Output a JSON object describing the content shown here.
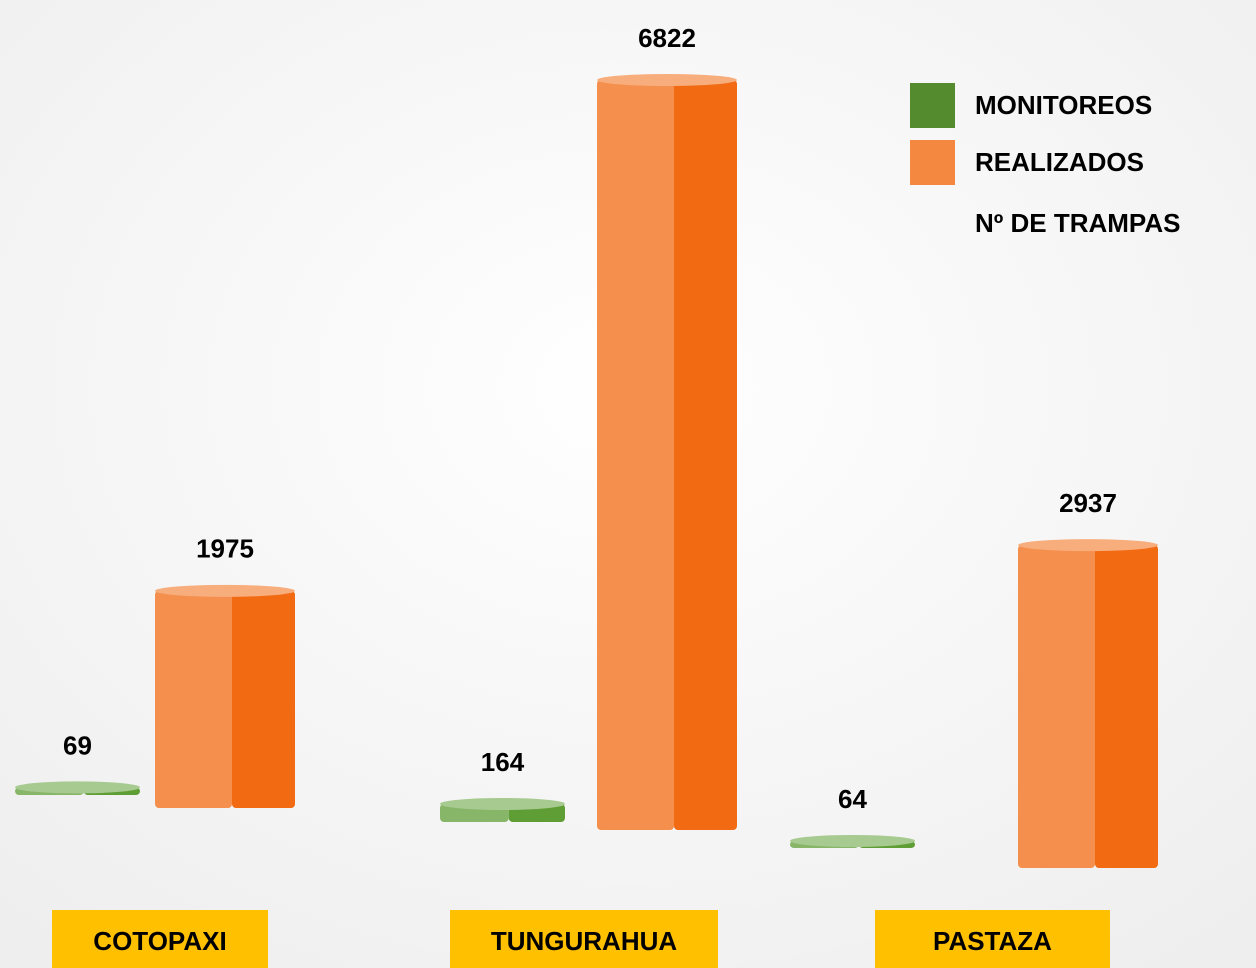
{
  "chart_data": {
    "type": "bar3d",
    "categories": [
      "COTOPAXI",
      "TUNGURAHUA",
      "PASTAZA"
    ],
    "series": [
      {
        "name": "MONITOREOS",
        "color": "#5f9e35",
        "values": [
          69,
          164,
          64
        ]
      },
      {
        "name": "REALIZADOS",
        "color": "#f26a12",
        "values": [
          1975,
          6822,
          2937
        ]
      }
    ],
    "legend_note": "Nº DE TRAMPAS",
    "legend": "top-right"
  }
}
